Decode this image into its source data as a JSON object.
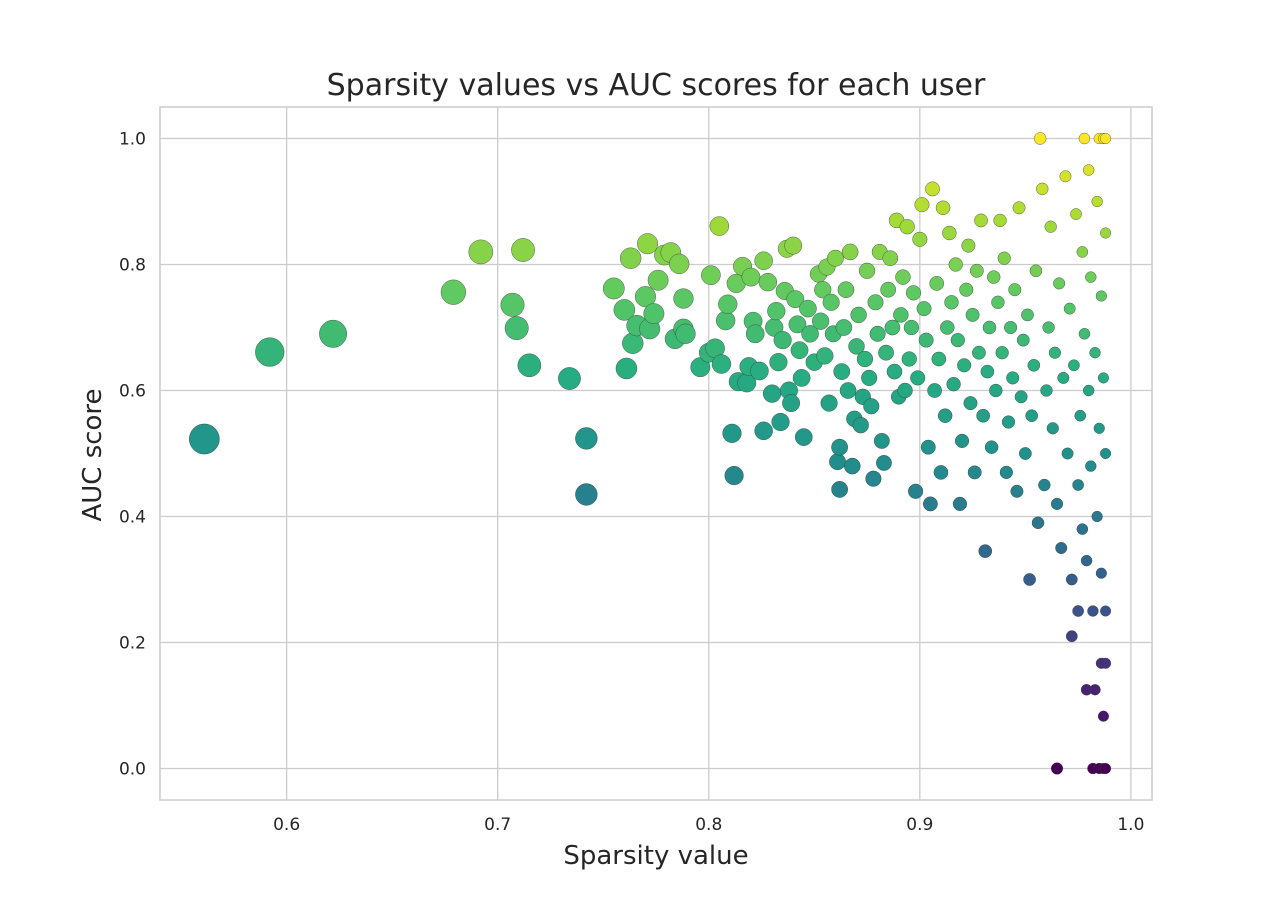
{
  "chart_data": {
    "type": "scatter",
    "title": "Sparsity values vs AUC scores for each user",
    "xlabel": "Sparsity value",
    "ylabel": "AUC score",
    "xlim": [
      0.54,
      1.01
    ],
    "ylim": [
      -0.05,
      1.05
    ],
    "xticks": [
      "0.6",
      "0.7",
      "0.8",
      "0.9",
      "1.0"
    ],
    "yticks": [
      "0.0",
      "0.2",
      "0.4",
      "0.6",
      "0.8",
      "1.0"
    ],
    "grid": true,
    "colormap": "viridis",
    "color_encodes": "AUC score",
    "size_encodes": "1 - sparsity",
    "points": [
      [
        0.561,
        0.523
      ],
      [
        0.592,
        0.661
      ],
      [
        0.622,
        0.69
      ],
      [
        0.679,
        0.756
      ],
      [
        0.692,
        0.82
      ],
      [
        0.707,
        0.736
      ],
      [
        0.709,
        0.699
      ],
      [
        0.712,
        0.823
      ],
      [
        0.715,
        0.64
      ],
      [
        0.734,
        0.619
      ],
      [
        0.742,
        0.524
      ],
      [
        0.742,
        0.435
      ],
      [
        0.755,
        0.762
      ],
      [
        0.76,
        0.728
      ],
      [
        0.761,
        0.635
      ],
      [
        0.763,
        0.81
      ],
      [
        0.764,
        0.675
      ],
      [
        0.766,
        0.703
      ],
      [
        0.77,
        0.749
      ],
      [
        0.771,
        0.833
      ],
      [
        0.772,
        0.698
      ],
      [
        0.774,
        0.722
      ],
      [
        0.776,
        0.775
      ],
      [
        0.779,
        0.815
      ],
      [
        0.782,
        0.819
      ],
      [
        0.784,
        0.682
      ],
      [
        0.786,
        0.801
      ],
      [
        0.788,
        0.746
      ],
      [
        0.788,
        0.698
      ],
      [
        0.789,
        0.69
      ],
      [
        0.796,
        0.637
      ],
      [
        0.8,
        0.66
      ],
      [
        0.801,
        0.783
      ],
      [
        0.803,
        0.667
      ],
      [
        0.805,
        0.861
      ],
      [
        0.806,
        0.642
      ],
      [
        0.808,
        0.711
      ],
      [
        0.809,
        0.737
      ],
      [
        0.811,
        0.532
      ],
      [
        0.812,
        0.465
      ],
      [
        0.813,
        0.77
      ],
      [
        0.814,
        0.614
      ],
      [
        0.816,
        0.797
      ],
      [
        0.818,
        0.612
      ],
      [
        0.819,
        0.638
      ],
      [
        0.82,
        0.78
      ],
      [
        0.821,
        0.71
      ],
      [
        0.822,
        0.69
      ],
      [
        0.824,
        0.631
      ],
      [
        0.826,
        0.806
      ],
      [
        0.826,
        0.536
      ],
      [
        0.828,
        0.772
      ],
      [
        0.83,
        0.595
      ],
      [
        0.831,
        0.7
      ],
      [
        0.832,
        0.726
      ],
      [
        0.833,
        0.645
      ],
      [
        0.834,
        0.55
      ],
      [
        0.835,
        0.68
      ],
      [
        0.836,
        0.758
      ],
      [
        0.837,
        0.825
      ],
      [
        0.838,
        0.6
      ],
      [
        0.839,
        0.58
      ],
      [
        0.84,
        0.83
      ],
      [
        0.841,
        0.745
      ],
      [
        0.842,
        0.705
      ],
      [
        0.843,
        0.664
      ],
      [
        0.844,
        0.62
      ],
      [
        0.845,
        0.526
      ],
      [
        0.847,
        0.73
      ],
      [
        0.848,
        0.69
      ],
      [
        0.85,
        0.645
      ],
      [
        0.852,
        0.785
      ],
      [
        0.853,
        0.71
      ],
      [
        0.854,
        0.76
      ],
      [
        0.855,
        0.655
      ],
      [
        0.856,
        0.796
      ],
      [
        0.857,
        0.58
      ],
      [
        0.858,
        0.74
      ],
      [
        0.859,
        0.69
      ],
      [
        0.86,
        0.81
      ],
      [
        0.861,
        0.487
      ],
      [
        0.862,
        0.443
      ],
      [
        0.862,
        0.51
      ],
      [
        0.863,
        0.63
      ],
      [
        0.864,
        0.7
      ],
      [
        0.865,
        0.76
      ],
      [
        0.866,
        0.6
      ],
      [
        0.867,
        0.82
      ],
      [
        0.868,
        0.48
      ],
      [
        0.869,
        0.555
      ],
      [
        0.87,
        0.67
      ],
      [
        0.871,
        0.72
      ],
      [
        0.872,
        0.545
      ],
      [
        0.873,
        0.59
      ],
      [
        0.874,
        0.65
      ],
      [
        0.875,
        0.79
      ],
      [
        0.876,
        0.62
      ],
      [
        0.877,
        0.575
      ],
      [
        0.878,
        0.46
      ],
      [
        0.879,
        0.74
      ],
      [
        0.88,
        0.69
      ],
      [
        0.881,
        0.82
      ],
      [
        0.882,
        0.52
      ],
      [
        0.883,
        0.485
      ],
      [
        0.884,
        0.66
      ],
      [
        0.885,
        0.76
      ],
      [
        0.886,
        0.81
      ],
      [
        0.887,
        0.7
      ],
      [
        0.888,
        0.63
      ],
      [
        0.889,
        0.87
      ],
      [
        0.89,
        0.59
      ],
      [
        0.891,
        0.72
      ],
      [
        0.892,
        0.78
      ],
      [
        0.893,
        0.6
      ],
      [
        0.894,
        0.86
      ],
      [
        0.895,
        0.65
      ],
      [
        0.896,
        0.7
      ],
      [
        0.897,
        0.755
      ],
      [
        0.898,
        0.44
      ],
      [
        0.899,
        0.62
      ],
      [
        0.9,
        0.84
      ],
      [
        0.901,
        0.895
      ],
      [
        0.902,
        0.73
      ],
      [
        0.903,
        0.68
      ],
      [
        0.904,
        0.51
      ],
      [
        0.905,
        0.42
      ],
      [
        0.906,
        0.92
      ],
      [
        0.907,
        0.6
      ],
      [
        0.908,
        0.77
      ],
      [
        0.909,
        0.65
      ],
      [
        0.91,
        0.47
      ],
      [
        0.911,
        0.89
      ],
      [
        0.912,
        0.56
      ],
      [
        0.913,
        0.7
      ],
      [
        0.914,
        0.85
      ],
      [
        0.915,
        0.74
      ],
      [
        0.916,
        0.61
      ],
      [
        0.917,
        0.8
      ],
      [
        0.918,
        0.68
      ],
      [
        0.919,
        0.42
      ],
      [
        0.92,
        0.52
      ],
      [
        0.921,
        0.64
      ],
      [
        0.922,
        0.76
      ],
      [
        0.923,
        0.83
      ],
      [
        0.924,
        0.58
      ],
      [
        0.925,
        0.72
      ],
      [
        0.926,
        0.47
      ],
      [
        0.927,
        0.79
      ],
      [
        0.928,
        0.66
      ],
      [
        0.929,
        0.87
      ],
      [
        0.93,
        0.56
      ],
      [
        0.931,
        0.345
      ],
      [
        0.932,
        0.63
      ],
      [
        0.933,
        0.7
      ],
      [
        0.934,
        0.51
      ],
      [
        0.935,
        0.78
      ],
      [
        0.936,
        0.6
      ],
      [
        0.937,
        0.74
      ],
      [
        0.938,
        0.87
      ],
      [
        0.939,
        0.66
      ],
      [
        0.94,
        0.81
      ],
      [
        0.941,
        0.47
      ],
      [
        0.942,
        0.55
      ],
      [
        0.943,
        0.7
      ],
      [
        0.944,
        0.62
      ],
      [
        0.945,
        0.76
      ],
      [
        0.946,
        0.44
      ],
      [
        0.947,
        0.89
      ],
      [
        0.948,
        0.59
      ],
      [
        0.949,
        0.68
      ],
      [
        0.95,
        0.5
      ],
      [
        0.951,
        0.72
      ],
      [
        0.952,
        0.3
      ],
      [
        0.953,
        0.56
      ],
      [
        0.954,
        0.64
      ],
      [
        0.955,
        0.79
      ],
      [
        0.956,
        0.39
      ],
      [
        0.957,
        1.0
      ],
      [
        0.958,
        0.92
      ],
      [
        0.959,
        0.45
      ],
      [
        0.96,
        0.6
      ],
      [
        0.961,
        0.7
      ],
      [
        0.962,
        0.86
      ],
      [
        0.963,
        0.54
      ],
      [
        0.964,
        0.66
      ],
      [
        0.965,
        0.0
      ],
      [
        0.965,
        0.42
      ],
      [
        0.966,
        0.77
      ],
      [
        0.967,
        0.35
      ],
      [
        0.968,
        0.62
      ],
      [
        0.969,
        0.94
      ],
      [
        0.97,
        0.5
      ],
      [
        0.971,
        0.73
      ],
      [
        0.972,
        0.21
      ],
      [
        0.972,
        0.3
      ],
      [
        0.973,
        0.64
      ],
      [
        0.974,
        0.88
      ],
      [
        0.975,
        0.45
      ],
      [
        0.975,
        0.25
      ],
      [
        0.976,
        0.56
      ],
      [
        0.977,
        0.82
      ],
      [
        0.977,
        0.38
      ],
      [
        0.978,
        0.69
      ],
      [
        0.978,
        1.0
      ],
      [
        0.979,
        0.125
      ],
      [
        0.979,
        0.33
      ],
      [
        0.98,
        0.6
      ],
      [
        0.98,
        0.95
      ],
      [
        0.981,
        0.48
      ],
      [
        0.981,
        0.78
      ],
      [
        0.982,
        0.0
      ],
      [
        0.982,
        0.25
      ],
      [
        0.983,
        0.125
      ],
      [
        0.983,
        0.66
      ],
      [
        0.984,
        0.9
      ],
      [
        0.984,
        0.4
      ],
      [
        0.985,
        0.0
      ],
      [
        0.985,
        0.54
      ],
      [
        0.985,
        1.0
      ],
      [
        0.986,
        0.167
      ],
      [
        0.986,
        0.75
      ],
      [
        0.986,
        0.31
      ],
      [
        0.987,
        0.0
      ],
      [
        0.987,
        0.083
      ],
      [
        0.987,
        0.62
      ],
      [
        0.987,
        1.0
      ],
      [
        0.988,
        0.167
      ],
      [
        0.988,
        0.85
      ],
      [
        0.988,
        0.5
      ],
      [
        0.988,
        0.0
      ],
      [
        0.988,
        0.25
      ],
      [
        0.988,
        1.0
      ]
    ]
  }
}
